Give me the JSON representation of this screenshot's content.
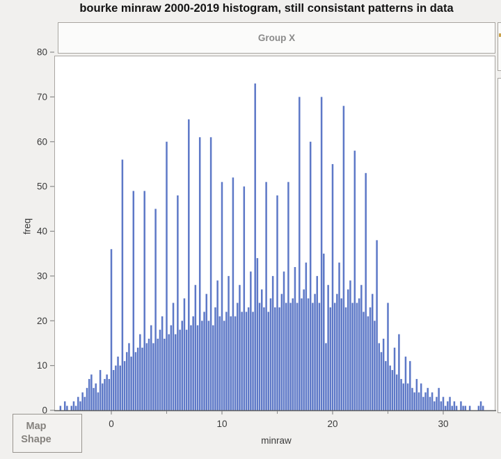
{
  "title": "bourke minraw 2000-2019 histogram, still consistant patterns in data",
  "group_header": {
    "label": "Group X"
  },
  "map_shape_button": {
    "line1": "Map",
    "line2": "Shape"
  },
  "colors": {
    "bar": "#5d78c7",
    "page_background": "#f1f0ee",
    "plot_background": "#ffffff",
    "frame_border": "#a9a6a2",
    "axis_line": "#5f5f5f",
    "tick": "#8a8a8a",
    "tick_label": "#3a3a3a",
    "header_text": "#8a8a8a",
    "sliver_mark": "#c9a14b"
  },
  "chart_data": {
    "type": "bar",
    "title": "bourke minraw 2000-2019 histogram, still consistant patterns in data",
    "xlabel": "minraw",
    "ylabel": "freq",
    "xlim": [
      -5.2,
      34.8
    ],
    "ylim": [
      0,
      80
    ],
    "grid": false,
    "legend": "none",
    "yticks": [
      0,
      10,
      20,
      30,
      40,
      50,
      60,
      70,
      80
    ],
    "xticks_labeled": [
      0,
      10,
      20,
      30
    ],
    "xticks_minor": [
      5,
      15,
      25
    ],
    "bin_start": -4.6,
    "bin_step": 0.2,
    "integer_peak_summary": {
      "0": 36,
      "1": 56,
      "2": 49,
      "3": 49,
      "4": 45,
      "5": 60,
      "6": 48,
      "7": 65,
      "8": 61,
      "9": 61,
      "10": 51,
      "11": 52,
      "12": 50,
      "13": 73,
      "14": 51,
      "15": 48,
      "16": 51,
      "17": 70,
      "18": 60,
      "19": 70,
      "20": 55,
      "21": 68,
      "22": 58,
      "23": 53,
      "24": 38
    },
    "frequencies": [
      1,
      0,
      2,
      1,
      0,
      1,
      2,
      1,
      3,
      2,
      4,
      3,
      5,
      7,
      8,
      5,
      6,
      4,
      9,
      6,
      7,
      8,
      7,
      36,
      9,
      10,
      12,
      10,
      56,
      11,
      13,
      15,
      12,
      49,
      13,
      14,
      17,
      14,
      49,
      15,
      16,
      19,
      15,
      45,
      16,
      18,
      21,
      16,
      60,
      17,
      19,
      24,
      17,
      48,
      18,
      20,
      25,
      18,
      65,
      19,
      21,
      28,
      19,
      61,
      20,
      22,
      26,
      20,
      61,
      19,
      23,
      29,
      21,
      51,
      20,
      22,
      30,
      21,
      52,
      21,
      24,
      28,
      22,
      50,
      22,
      23,
      31,
      22,
      73,
      34,
      24,
      27,
      23,
      51,
      22,
      25,
      30,
      23,
      48,
      23,
      26,
      31,
      24,
      51,
      24,
      25,
      32,
      24,
      70,
      25,
      27,
      33,
      25,
      60,
      24,
      26,
      30,
      24,
      70,
      35,
      15,
      28,
      23,
      55,
      24,
      26,
      33,
      25,
      68,
      23,
      27,
      29,
      24,
      58,
      24,
      25,
      28,
      22,
      53,
      21,
      23,
      26,
      20,
      38,
      15,
      13,
      16,
      11,
      24,
      10,
      9,
      14,
      8,
      17,
      7,
      6,
      12,
      6,
      11,
      5,
      4,
      7,
      4,
      6,
      3,
      4,
      5,
      3,
      4,
      2,
      3,
      5,
      2,
      3,
      1,
      2,
      3,
      1,
      2,
      1,
      0,
      2,
      1,
      1,
      0,
      1,
      0,
      0,
      0,
      1,
      2,
      1
    ]
  }
}
